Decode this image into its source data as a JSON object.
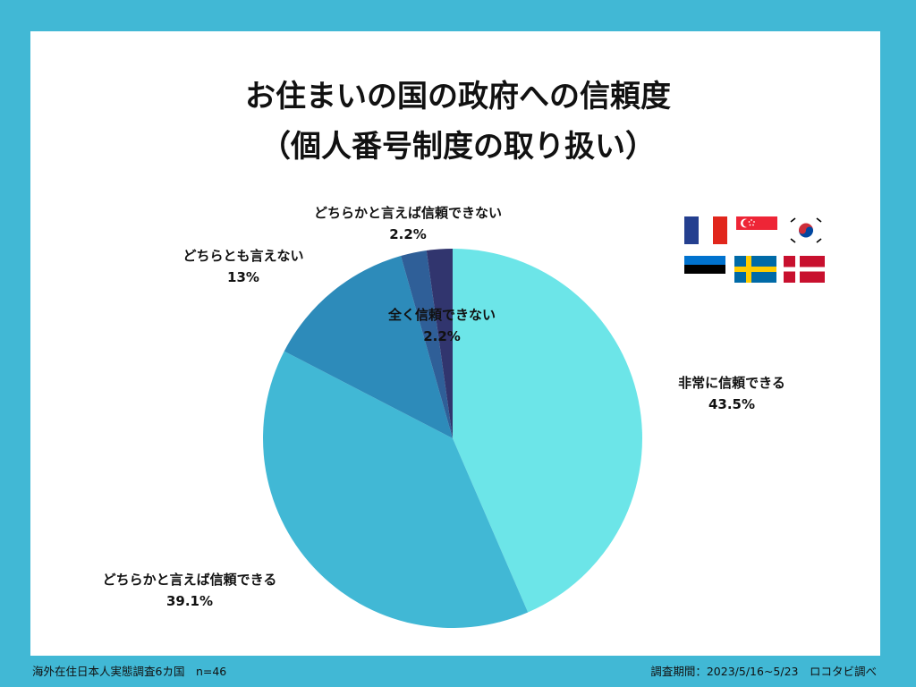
{
  "title": {
    "line1": "お住まいの国の政府への信頼度",
    "line2": "（個人番号制度の取り扱い）"
  },
  "chart_data": {
    "type": "pie",
    "start_angle": "12 o'clock, clockwise",
    "slices": [
      {
        "name": "非常に信頼できる",
        "value": 43.5,
        "label": "43.5%",
        "color": "#6ce5e8"
      },
      {
        "name": "どちらかと言えば信頼できる",
        "value": 39.1,
        "label": "39.1%",
        "color": "#41b8d5"
      },
      {
        "name": "どちらとも言えない",
        "value": 13,
        "label": "13%",
        "color": "#2d8bba"
      },
      {
        "name": "どちらかと言えば信頼できない",
        "value": 2.2,
        "label": "2.2%",
        "color": "#2f5f98"
      },
      {
        "name": "全く信頼できない",
        "value": 2.2,
        "label": "2.2%",
        "color": "#31356e"
      }
    ]
  },
  "flags": [
    "france-flag",
    "singapore-flag",
    "south-korea-flag",
    "estonia-flag",
    "sweden-flag",
    "denmark-flag"
  ],
  "footer": {
    "left": "海外在住日本人実態調査6カ国　n=46",
    "right": "調査期間：2023/5/16~5/23　ロコタビ調べ"
  },
  "colors": {
    "background": "#41b8d5",
    "card": "#ffffff"
  }
}
